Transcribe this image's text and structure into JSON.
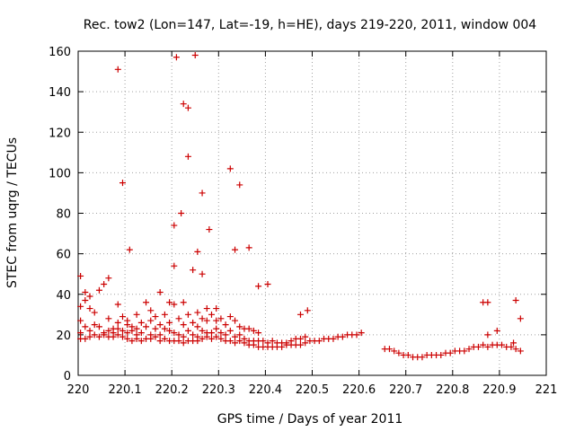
{
  "chart_data": {
    "type": "scatter",
    "title": "Rec. tow2 (Lon=147, Lat=-19, h=HE), days 219-220, 2011, window 004",
    "xlabel": "GPS time / Days of year 2011",
    "ylabel": "STEC from uqrg / TECUs",
    "xlim": [
      220,
      221
    ],
    "ylim": [
      0,
      160
    ],
    "xticks": [
      "220",
      "220.1",
      "220.2",
      "220.3",
      "220.4",
      "220.5",
      "220.6",
      "220.7",
      "220.8",
      "220.9",
      "221"
    ],
    "yticks": [
      "0",
      "20",
      "40",
      "60",
      "80",
      "100",
      "120",
      "140",
      "160"
    ],
    "grid": true,
    "marker": "+",
    "color": "#cc0000",
    "series": [
      {
        "name": "STEC",
        "x": [
          220.005,
          220.005,
          220.005,
          220.005,
          220.015,
          220.015,
          220.015,
          220.025,
          220.025,
          220.025,
          220.025,
          220.035,
          220.035,
          220.035,
          220.045,
          220.045,
          220.045,
          220.055,
          220.055,
          220.065,
          220.065,
          220.065,
          220.075,
          220.075,
          220.075,
          220.085,
          220.085,
          220.085,
          220.085,
          220.095,
          220.095,
          220.095,
          220.105,
          220.105,
          220.105,
          220.105,
          220.115,
          220.115,
          220.115,
          220.125,
          220.125,
          220.125,
          220.125,
          220.135,
          220.135,
          220.135,
          220.145,
          220.145,
          220.145,
          220.155,
          220.155,
          220.155,
          220.155,
          220.165,
          220.165,
          220.165,
          220.175,
          220.175,
          220.175,
          220.175,
          220.185,
          220.185,
          220.185,
          220.195,
          220.195,
          220.195,
          220.195,
          220.205,
          220.205,
          220.205,
          220.215,
          220.215,
          220.215,
          220.225,
          220.225,
          220.225,
          220.225,
          220.235,
          220.235,
          220.235,
          220.245,
          220.245,
          220.245,
          220.255,
          220.255,
          220.255,
          220.255,
          220.265,
          220.265,
          220.265,
          220.275,
          220.275,
          220.275,
          220.275,
          220.285,
          220.285,
          220.285,
          220.295,
          220.295,
          220.295,
          220.295,
          220.305,
          220.305,
          220.305,
          220.315,
          220.315,
          220.315,
          220.325,
          220.325,
          220.325,
          220.335,
          220.335,
          220.335,
          220.345,
          220.345,
          220.345,
          220.355,
          220.355,
          220.355,
          220.365,
          220.365,
          220.365,
          220.375,
          220.375,
          220.375,
          220.385,
          220.385,
          220.385,
          220.395,
          220.395,
          220.405,
          220.405,
          220.415,
          220.415,
          220.425,
          220.425,
          220.435,
          220.435,
          220.445,
          220.445,
          220.455,
          220.455,
          220.465,
          220.465,
          220.475,
          220.475,
          220.485,
          220.485,
          220.495,
          220.505,
          220.515,
          220.525,
          220.535,
          220.545,
          220.555,
          220.565,
          220.575,
          220.585,
          220.595,
          220.605,
          220.655,
          220.665,
          220.675,
          220.685,
          220.695,
          220.705,
          220.715,
          220.725,
          220.735,
          220.745,
          220.755,
          220.765,
          220.775,
          220.785,
          220.795,
          220.805,
          220.815,
          220.825,
          220.835,
          220.845,
          220.855,
          220.865,
          220.875,
          220.885,
          220.895,
          220.905,
          220.915,
          220.925,
          220.935,
          220.945,
          220.085,
          220.095,
          220.21,
          220.225,
          220.235,
          220.25,
          220.235,
          220.265,
          220.22,
          220.205,
          220.325,
          220.345,
          220.28,
          220.335,
          220.365,
          220.255,
          220.11,
          220.865,
          220.875,
          220.935,
          220.945,
          220.005,
          220.015,
          220.055,
          220.065,
          220.205,
          220.245,
          220.265,
          220.385,
          220.405,
          220.475,
          220.49,
          220.875,
          220.895,
          220.93
        ],
        "y": [
          18,
          21,
          27,
          34,
          18,
          24,
          37,
          19,
          22,
          33,
          39,
          20,
          25,
          31,
          19,
          24,
          42,
          20,
          21,
          19,
          22,
          28,
          21,
          23,
          19,
          20,
          23,
          26,
          35,
          19,
          22,
          29,
          18,
          21,
          25,
          27,
          17,
          22,
          24,
          18,
          20,
          23,
          30,
          17,
          21,
          26,
          18,
          24,
          36,
          18,
          20,
          27,
          32,
          19,
          23,
          29,
          17,
          20,
          25,
          41,
          18,
          23,
          30,
          17,
          22,
          26,
          36,
          17,
          21,
          35,
          17,
          20,
          28,
          16,
          19,
          25,
          36,
          17,
          22,
          30,
          17,
          20,
          26,
          17,
          19,
          24,
          31,
          18,
          22,
          28,
          19,
          21,
          27,
          33,
          18,
          21,
          30,
          19,
          23,
          27,
          33,
          18,
          21,
          28,
          17,
          20,
          25,
          17,
          22,
          29,
          16,
          19,
          27,
          17,
          20,
          24,
          16,
          18,
          23,
          15,
          17,
          23,
          15,
          17,
          22,
          14,
          17,
          21,
          14,
          17,
          14,
          16,
          14,
          17,
          14,
          16,
          14,
          16,
          15,
          16,
          15,
          17,
          15,
          18,
          15,
          18,
          16,
          19,
          17,
          17,
          17,
          18,
          18,
          18,
          19,
          19,
          20,
          20,
          20,
          21,
          13,
          13,
          12,
          11,
          10,
          10,
          9,
          9,
          9,
          10,
          10,
          10,
          10,
          11,
          11,
          12,
          12,
          12,
          13,
          14,
          14,
          15,
          14,
          15,
          15,
          15,
          14,
          14,
          13,
          12,
          151,
          95,
          157,
          134,
          132,
          158,
          108,
          90,
          80,
          74,
          102,
          94,
          72,
          62,
          63,
          61,
          62,
          36,
          20,
          37,
          28,
          49,
          41,
          45,
          48,
          54,
          52,
          50,
          44,
          45,
          30,
          32,
          36,
          22,
          16
        ]
      }
    ]
  }
}
